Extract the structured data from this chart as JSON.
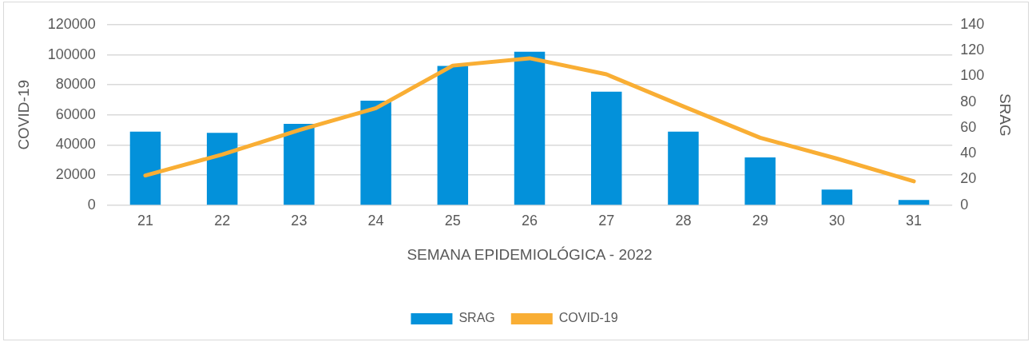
{
  "chart_data": {
    "type": "bar",
    "xlabel": "SEMANA EPIDEMIOLÓGICA - 2022",
    "ylabel": "COVID-19",
    "y2label": "SRAG",
    "categories": [
      "21",
      "22",
      "23",
      "24",
      "25",
      "26",
      "27",
      "28",
      "29",
      "30",
      "31"
    ],
    "series": [
      {
        "name": "SRAG",
        "axis": "y2",
        "color": "#0391da",
        "values": [
          57,
          56,
          63,
          81,
          108,
          119,
          88,
          57,
          37,
          12,
          4
        ]
      },
      {
        "name": "COVID-19",
        "type": "line",
        "axis": "y",
        "color": "#f9ae34",
        "values": [
          19700,
          33600,
          49900,
          64500,
          92800,
          97700,
          87000,
          65700,
          44800,
          30900,
          15800
        ]
      }
    ],
    "ylim": [
      0,
      120000
    ],
    "yticks": [
      0,
      20000,
      40000,
      60000,
      80000,
      100000,
      120000
    ],
    "y2lim": [
      0,
      140
    ],
    "y2ticks": [
      0,
      20,
      40,
      60,
      80,
      100,
      120,
      140
    ],
    "grid": "y",
    "legend": "bottom",
    "marker": "none",
    "line_style": "solid"
  }
}
